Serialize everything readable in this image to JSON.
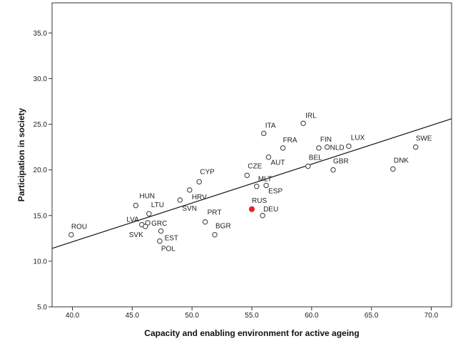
{
  "chart_data": {
    "type": "scatter",
    "title": "",
    "xlabel": "Capacity and enabling environment for active ageing",
    "ylabel": "Participation in society",
    "xlim": [
      38.3,
      71.7
    ],
    "ylim": [
      5.0,
      38.3
    ],
    "xticks": [
      40,
      45,
      50,
      55,
      60,
      65,
      70
    ],
    "yticks": [
      5,
      10,
      15,
      20,
      25,
      30,
      35
    ],
    "grid": false,
    "legend": "none",
    "colors": {
      "point": "#444444",
      "highlight": "#e8202a",
      "line": "#111111",
      "axis": "#333333"
    },
    "fit_line": {
      "x": [
        38.3,
        71.7
      ],
      "y": [
        11.4,
        25.6
      ]
    },
    "points": [
      {
        "label": "ROU",
        "x": 39.9,
        "y": 12.9
      },
      {
        "label": "HUN",
        "x": 45.3,
        "y": 16.1
      },
      {
        "label": "LTU",
        "x": 46.4,
        "y": 15.2
      },
      {
        "label": "LVA",
        "x": 45.8,
        "y": 14.0
      },
      {
        "label": "GRC",
        "x": 46.3,
        "y": 14.2
      },
      {
        "label": "SVK",
        "x": 46.1,
        "y": 13.8
      },
      {
        "label": "EST",
        "x": 47.4,
        "y": 13.3
      },
      {
        "label": "POL",
        "x": 47.3,
        "y": 12.2
      },
      {
        "label": "SVN",
        "x": 49.0,
        "y": 16.7
      },
      {
        "label": "HRV",
        "x": 49.8,
        "y": 17.8
      },
      {
        "label": "CYP",
        "x": 50.6,
        "y": 18.7
      },
      {
        "label": "PRT",
        "x": 51.1,
        "y": 14.3
      },
      {
        "label": "BGR",
        "x": 51.9,
        "y": 12.9
      },
      {
        "label": "CZE",
        "x": 54.6,
        "y": 19.4
      },
      {
        "label": "MLT",
        "x": 55.4,
        "y": 18.2
      },
      {
        "label": "ESP",
        "x": 56.2,
        "y": 18.3
      },
      {
        "label": "RUS",
        "x": 55.0,
        "y": 15.7,
        "highlight": true
      },
      {
        "label": "DEU",
        "x": 55.9,
        "y": 15.0
      },
      {
        "label": "ITA",
        "x": 56.0,
        "y": 24.0
      },
      {
        "label": "AUT",
        "x": 56.4,
        "y": 21.4
      },
      {
        "label": "FRA",
        "x": 57.6,
        "y": 22.4
      },
      {
        "label": "IRL",
        "x": 59.3,
        "y": 25.1
      },
      {
        "label": "BEL",
        "x": 59.7,
        "y": 20.4
      },
      {
        "label": "FIN",
        "x": 60.6,
        "y": 22.4
      },
      {
        "label": "NLD",
        "x": 61.3,
        "y": 22.5
      },
      {
        "label": "LUX",
        "x": 63.1,
        "y": 22.6
      },
      {
        "label": "GBR",
        "x": 61.8,
        "y": 20.0
      },
      {
        "label": "DNK",
        "x": 66.8,
        "y": 20.1
      },
      {
        "label": "SWE",
        "x": 68.7,
        "y": 22.5
      }
    ]
  }
}
